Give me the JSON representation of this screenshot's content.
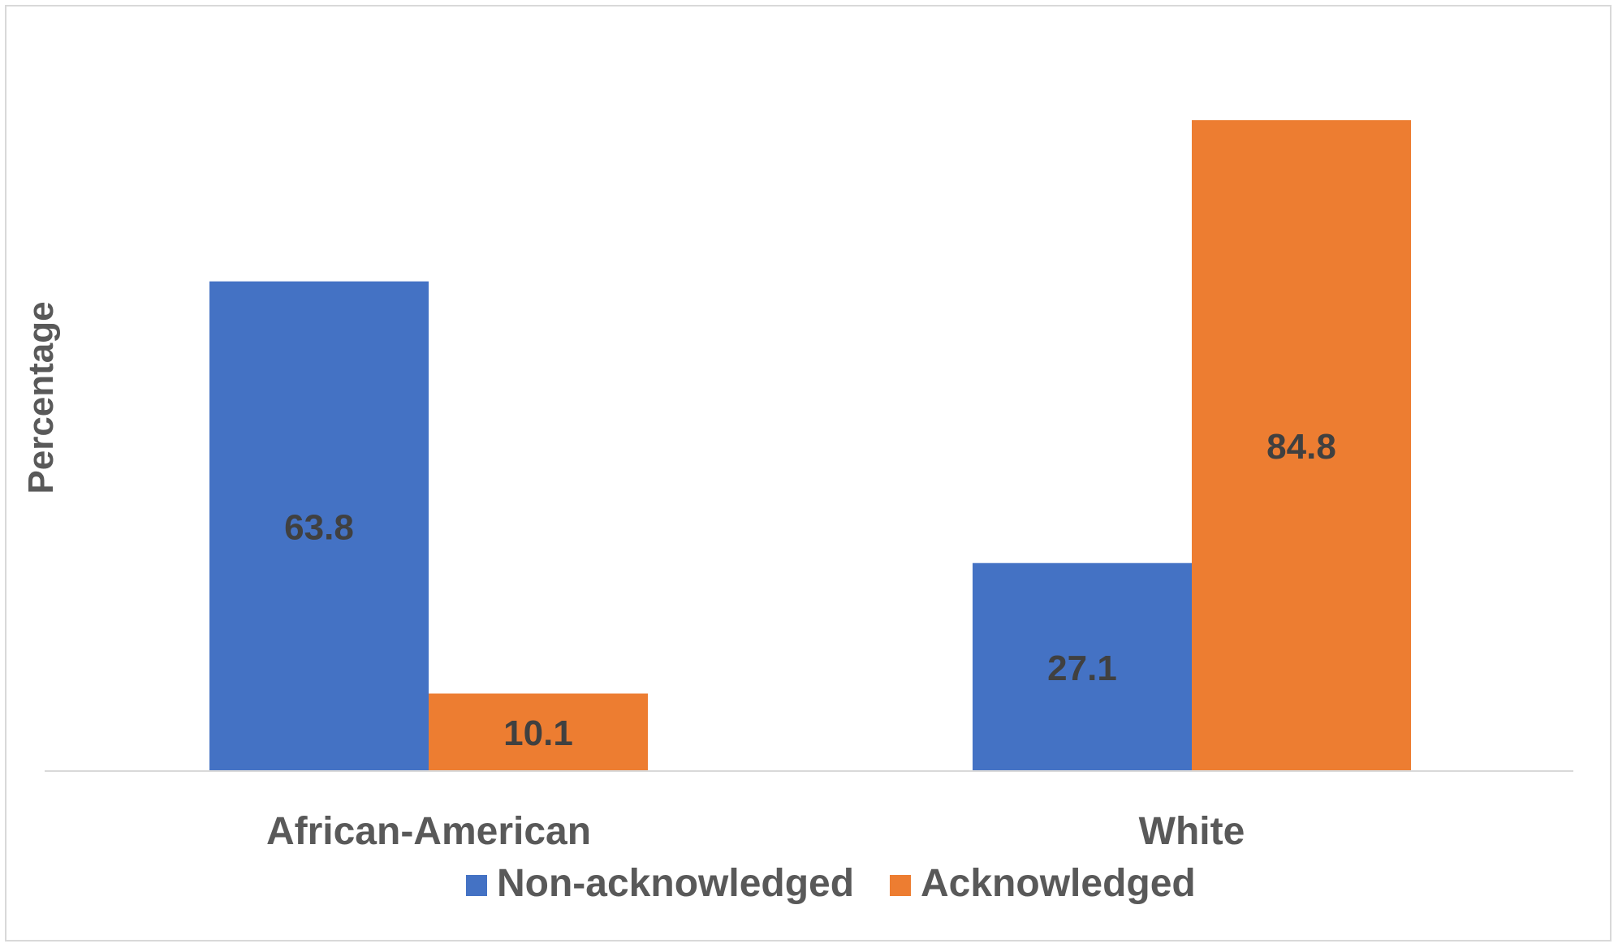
{
  "chart_data": {
    "type": "bar",
    "title": "",
    "xlabel": "",
    "ylabel": "Percentage",
    "categories": [
      "African-American",
      "White"
    ],
    "series": [
      {
        "name": "Non-acknowledged",
        "values": [
          63.8,
          27.1
        ],
        "color": "#4472C4"
      },
      {
        "name": "Acknowledged",
        "values": [
          10.1,
          84.8
        ],
        "color": "#ED7D31"
      }
    ],
    "ylim": [
      0,
      92
    ],
    "grid": false,
    "legend_position": "bottom"
  }
}
